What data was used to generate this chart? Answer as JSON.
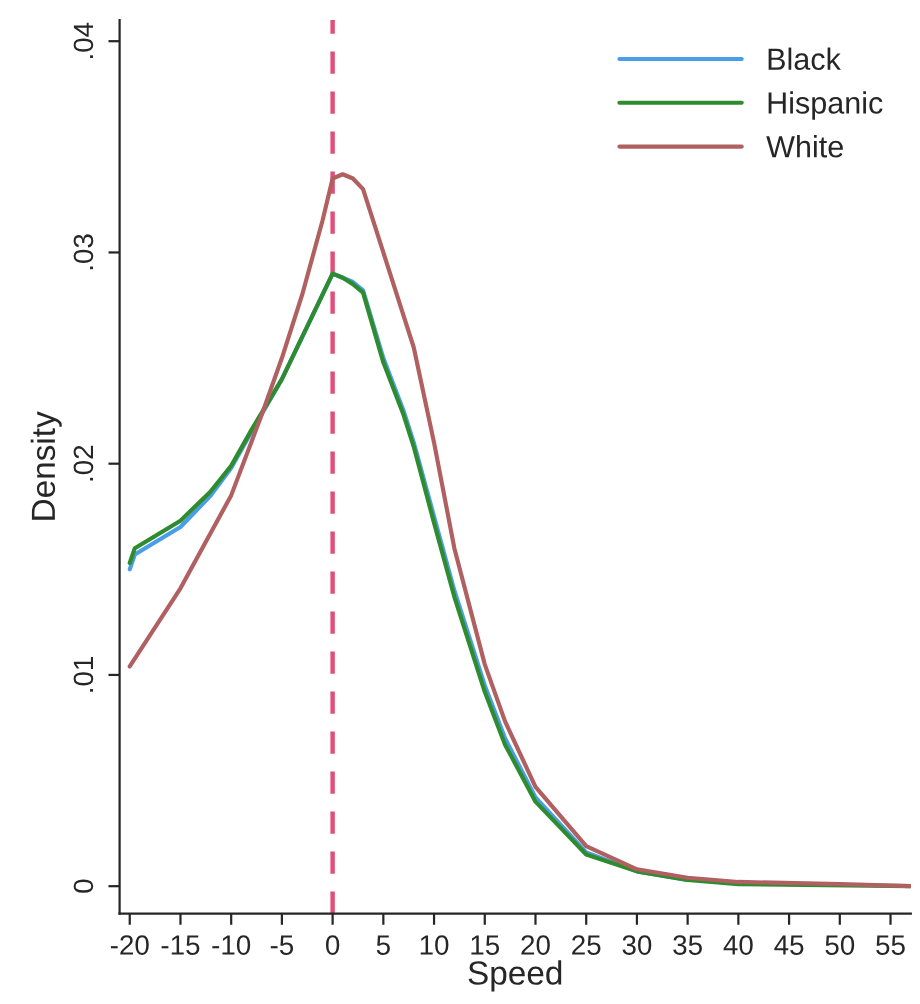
{
  "chart_data": {
    "type": "line",
    "xlabel": "Speed",
    "ylabel": "Density",
    "xlim": [
      -21,
      57
    ],
    "ylim": [
      -0.0013,
      0.041
    ],
    "xticks": [
      -20,
      -15,
      -10,
      -5,
      0,
      5,
      10,
      15,
      20,
      25,
      30,
      35,
      40,
      45,
      50,
      55
    ],
    "yticks": [
      {
        "value": 0,
        "label": "0"
      },
      {
        "value": 0.01,
        "label": ".01"
      },
      {
        "value": 0.02,
        "label": ".02"
      },
      {
        "value": 0.03,
        "label": ".03"
      },
      {
        "value": 0.04,
        "label": ".04"
      }
    ],
    "grid": false,
    "legend": "top right",
    "marker": "none",
    "line_style": "solid",
    "ref_lines": [
      {
        "axis": "x",
        "value": 0,
        "label": null,
        "color": "#e0507a",
        "line_style": "dashed"
      }
    ],
    "series": [
      {
        "name": "Black",
        "color": "#4a9ee8",
        "x": [
          -20,
          -19.5,
          -15,
          -12,
          -10,
          -8,
          -5,
          -2,
          0,
          1,
          2,
          3,
          5,
          7,
          8,
          10,
          12,
          15,
          17,
          20,
          25,
          30,
          35
        ],
        "values": [
          0.015,
          0.0157,
          0.017,
          0.0185,
          0.0198,
          0.0215,
          0.024,
          0.027,
          0.029,
          0.0288,
          0.0286,
          0.0282,
          0.025,
          0.0225,
          0.021,
          0.0175,
          0.014,
          0.0095,
          0.007,
          0.0042,
          0.0016,
          0.0007,
          0.0003
        ]
      },
      {
        "name": "Hispanic",
        "color": "#2e8b2e",
        "x": [
          -20,
          -19.5,
          -15,
          -12,
          -10,
          -8,
          -5,
          -2,
          0,
          1,
          2,
          3,
          5,
          7,
          8,
          10,
          12,
          15,
          17,
          20,
          25,
          30,
          35,
          40,
          57
        ],
        "values": [
          0.0153,
          0.016,
          0.0173,
          0.0187,
          0.0199,
          0.0216,
          0.024,
          0.027,
          0.029,
          0.0288,
          0.0285,
          0.0281,
          0.0248,
          0.0223,
          0.0208,
          0.0172,
          0.0137,
          0.0092,
          0.0067,
          0.004,
          0.0015,
          0.0007,
          0.0003,
          0.0001,
          0.0
        ]
      },
      {
        "name": "White",
        "color": "#b06060",
        "x": [
          -20,
          -15,
          -10,
          -7,
          -5,
          -3,
          -1,
          0,
          1,
          2,
          3,
          5,
          7,
          8,
          10,
          12,
          15,
          17,
          20,
          25,
          30,
          35,
          40,
          50,
          57
        ],
        "values": [
          0.0104,
          0.0141,
          0.0185,
          0.0223,
          0.025,
          0.028,
          0.0315,
          0.0335,
          0.0337,
          0.0335,
          0.033,
          0.03,
          0.027,
          0.0255,
          0.021,
          0.016,
          0.0105,
          0.0078,
          0.0047,
          0.0019,
          0.0008,
          0.0004,
          0.0002,
          0.0001,
          0.0
        ]
      }
    ]
  }
}
